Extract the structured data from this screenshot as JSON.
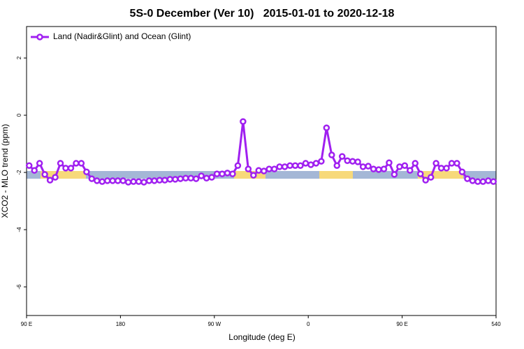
{
  "chart_data": {
    "type": "line",
    "title": "5S-0 December (Ver 10)   2015-01-01 to 2020-12-18",
    "x_label": "Longitude (deg E)",
    "y_label": "XCO2 - MLO trend (ppm)",
    "xlim": [
      90,
      540
    ],
    "xticks": [
      {
        "value": 90,
        "label": "90 E"
      },
      180,
      {
        "value": 270,
        "label": "90 W"
      },
      {
        "value": 360,
        "label": "0"
      },
      {
        "value": 450,
        "label": "90 E"
      },
      540
    ],
    "ylim": [
      -7,
      3.1
    ],
    "yticks": [
      -6,
      -4,
      -2,
      0,
      2
    ],
    "legend": "top-left",
    "x": [
      92.5,
      97.5,
      102.5,
      107.5,
      112.5,
      117.5,
      122.5,
      127.5,
      132.5,
      137.5,
      142.5,
      147.5,
      152.5,
      157.5,
      162.5,
      167.5,
      172.5,
      177.5,
      182.5,
      187.5,
      192.5,
      197.5,
      202.5,
      207.5,
      212.5,
      217.5,
      222.5,
      227.5,
      232.5,
      237.5,
      242.5,
      247.5,
      252.5,
      257.5,
      262.5,
      267.5,
      272.5,
      277.5,
      282.5,
      287.5,
      292.5,
      297.5,
      302.5,
      307.5,
      312.5,
      317.5,
      322.5,
      327.5,
      332.5,
      337.5,
      342.5,
      347.5,
      352.5,
      357.5,
      362.5,
      367.5,
      372.5,
      377.5,
      382.5,
      387.5,
      392.5,
      397.5,
      402.5,
      407.5,
      412.5,
      417.5,
      422.5,
      427.5,
      432.5,
      437.5,
      442.5,
      447.5,
      452.5,
      457.5,
      462.5,
      467.5,
      472.5,
      477.5,
      482.5,
      487.5,
      492.5,
      497.5,
      502.5,
      507.5,
      512.5,
      517.5,
      522.5,
      527.5,
      532.5,
      537.5
    ],
    "series": [
      {
        "name": "Land (Nadir&Glint) and Ocean (Glint)",
        "color": "#a020f0",
        "values": [
          -1.76,
          -1.93,
          -1.68,
          -2.07,
          -2.27,
          -2.17,
          -1.68,
          -1.85,
          -1.85,
          -1.68,
          -1.68,
          -1.98,
          -2.22,
          -2.29,
          -2.32,
          -2.29,
          -2.29,
          -2.29,
          -2.29,
          -2.34,
          -2.32,
          -2.32,
          -2.34,
          -2.29,
          -2.29,
          -2.27,
          -2.27,
          -2.24,
          -2.24,
          -2.22,
          -2.2,
          -2.2,
          -2.22,
          -2.12,
          -2.2,
          -2.17,
          -2.05,
          -2.05,
          -2.02,
          -2.05,
          -1.76,
          -0.22,
          -1.88,
          -2.1,
          -1.93,
          -1.95,
          -1.88,
          -1.88,
          -1.8,
          -1.8,
          -1.76,
          -1.76,
          -1.76,
          -1.68,
          -1.73,
          -1.68,
          -1.61,
          -0.44,
          -1.39,
          -1.76,
          -1.44,
          -1.59,
          -1.61,
          -1.63,
          -1.8,
          -1.78,
          -1.88,
          -1.9,
          -1.88,
          -1.66,
          -2.07,
          -1.8,
          -1.76,
          -1.93,
          -1.68,
          -2.05,
          -2.27,
          -2.17,
          -1.68,
          -1.85,
          -1.85,
          -1.68,
          -1.68,
          -1.98,
          -2.22,
          -2.29,
          -2.32,
          -2.32,
          -2.29,
          -2.32
        ]
      }
    ]
  }
}
